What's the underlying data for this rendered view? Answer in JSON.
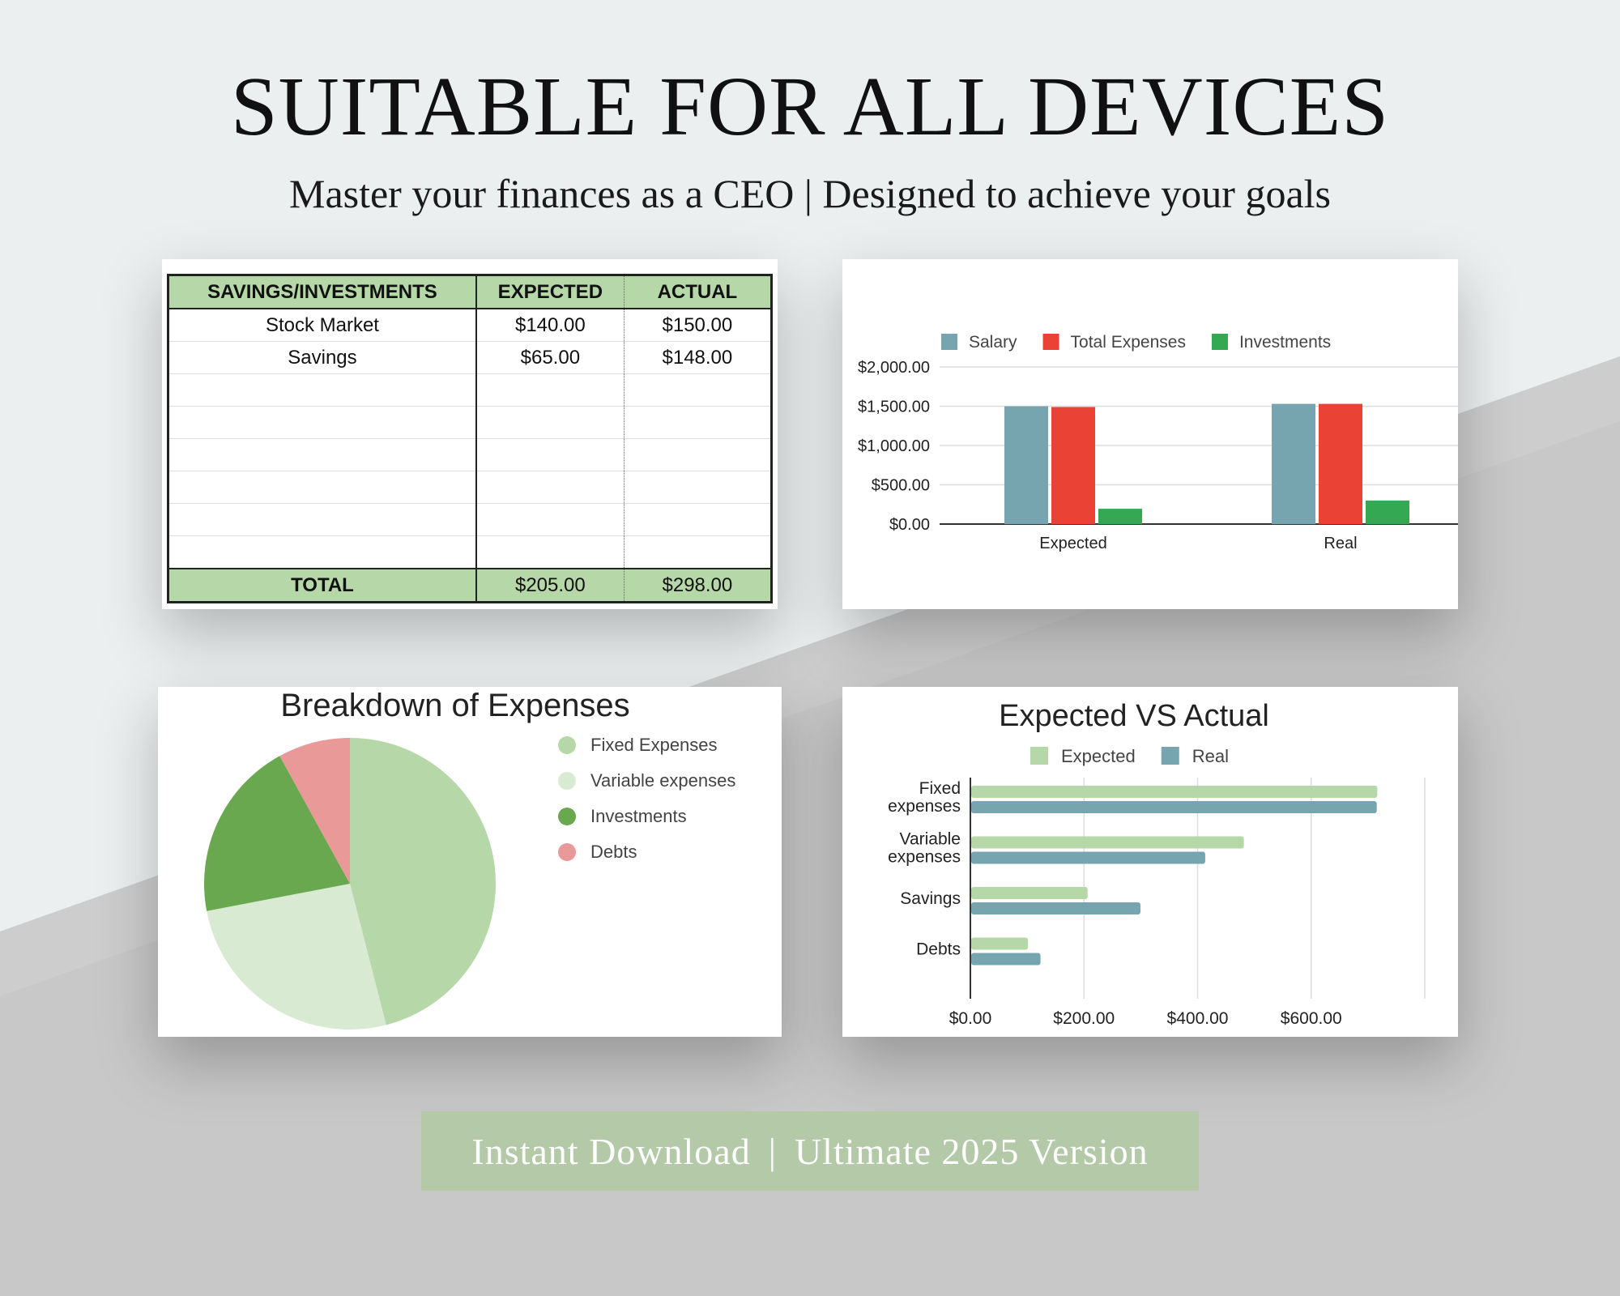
{
  "hero": {
    "title": "SUITABLE FOR ALL DEVICES",
    "subtitle": "Master your finances as a CEO | Designed to achieve your goals"
  },
  "savings_table": {
    "headers": [
      "SAVINGS/INVESTMENTS",
      "EXPECTED",
      "ACTUAL"
    ],
    "rows": [
      [
        "Stock Market",
        "$140.00",
        "$150.00"
      ],
      [
        "Savings",
        "$65.00",
        "$148.00"
      ]
    ],
    "total": [
      "TOTAL",
      "$205.00",
      "$298.00"
    ]
  },
  "footer": {
    "left": "Instant Download",
    "separator": "|",
    "right": "Ultimate 2025 Version"
  },
  "colors": {
    "salary": "#76a5af",
    "total_expenses": "#ea4335",
    "investments": "#34a853",
    "fixed": "#b6d7a8",
    "variable": "#d9ead3",
    "invest_pie": "#6aa84f",
    "debts": "#ea9999",
    "expected_bar": "#b6d7a8",
    "real_bar": "#76a5af"
  },
  "chart_data": [
    {
      "type": "bar",
      "title": "",
      "categories": [
        "Expected",
        "Real"
      ],
      "series": [
        {
          "name": "Salary",
          "values": [
            1500,
            1530
          ]
        },
        {
          "name": "Total Expenses",
          "values": [
            1490,
            1530
          ]
        },
        {
          "name": "Investments",
          "values": [
            195,
            300
          ]
        }
      ],
      "yticks": [
        "$0.00",
        "$500.00",
        "$1,000.00",
        "$1,500.00",
        "$2,000.00"
      ],
      "ylim": [
        0,
        2000
      ],
      "grid": true,
      "legend": "top"
    },
    {
      "type": "pie",
      "title": "Breakdown of Expenses",
      "labels": [
        "Fixed Expenses",
        "Variable expenses",
        "Investments",
        "Debts"
      ],
      "values": [
        46,
        26,
        20,
        8
      ],
      "legend": "right"
    },
    {
      "type": "bar",
      "orientation": "horizontal",
      "title": "Expected VS Actual",
      "categories": [
        [
          "Fixed",
          "expenses"
        ],
        [
          "Variable",
          "expenses"
        ],
        [
          "Savings"
        ],
        [
          "Debts"
        ]
      ],
      "series": [
        {
          "name": "Expected",
          "values": [
            715,
            480,
            205,
            100
          ]
        },
        {
          "name": "Real",
          "values": [
            714,
            412,
            298,
            122
          ]
        }
      ],
      "xticks": [
        "$0.00",
        "$200.00",
        "$400.00",
        "$600.00"
      ],
      "xlim": [
        0,
        800
      ],
      "grid": true,
      "legend": "top"
    }
  ]
}
